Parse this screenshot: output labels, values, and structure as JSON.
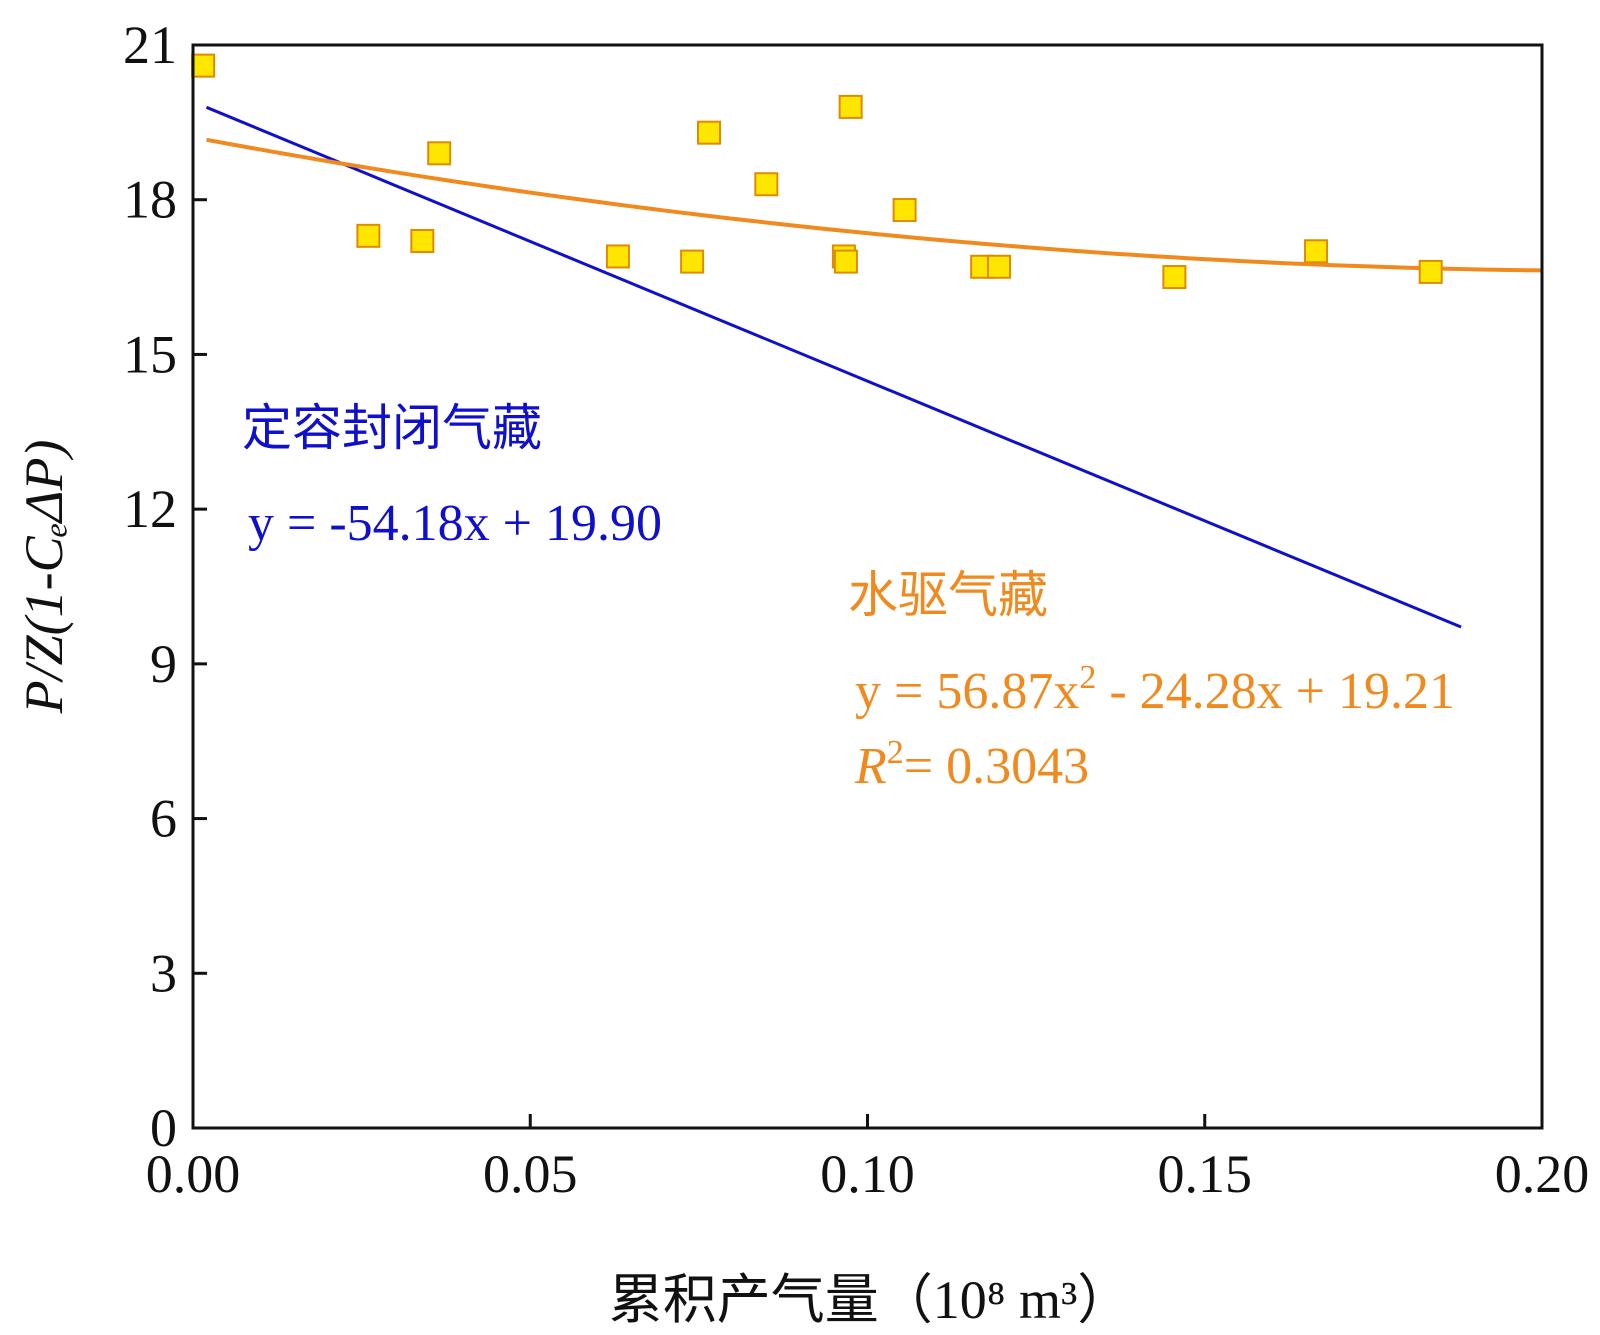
{
  "chart_data": {
    "type": "scatter",
    "title": "",
    "xlabel": "累积产气量（10⁸ m³）",
    "ylabel": "P/Z(1-CₑΔP)",
    "xlim": [
      0,
      0.2
    ],
    "ylim": [
      0,
      21
    ],
    "xticks": [
      0.0,
      0.05,
      0.1,
      0.15,
      0.2
    ],
    "xtick_labels": [
      "0.00",
      "0.05",
      "0.10",
      "0.15",
      "0.20"
    ],
    "yticks": [
      0,
      3,
      6,
      9,
      12,
      15,
      18,
      21
    ],
    "ytick_labels": [
      "0",
      "3",
      "6",
      "9",
      "12",
      "15",
      "18",
      "21"
    ],
    "grid": false,
    "series": [
      {
        "name": "data",
        "kind": "scatter",
        "marker": "square",
        "color": "#FFE600",
        "edge_color": "#E08A00",
        "points": [
          [
            0.0015,
            20.6
          ],
          [
            0.026,
            17.3
          ],
          [
            0.034,
            17.2
          ],
          [
            0.0365,
            18.9
          ],
          [
            0.063,
            16.9
          ],
          [
            0.074,
            16.8
          ],
          [
            0.0765,
            19.3
          ],
          [
            0.085,
            18.3
          ],
          [
            0.0965,
            16.9
          ],
          [
            0.0968,
            16.8
          ],
          [
            0.0975,
            19.8
          ],
          [
            0.1055,
            17.8
          ],
          [
            0.117,
            16.7
          ],
          [
            0.1195,
            16.7
          ],
          [
            0.1455,
            16.5
          ],
          [
            0.1665,
            17.0
          ],
          [
            0.1835,
            16.6
          ]
        ]
      },
      {
        "name": "定容封闭气藏",
        "kind": "linear-fit",
        "color": "#1010CC",
        "coefficients": {
          "a": -54.18,
          "b": 19.9
        },
        "x_range": [
          0.002,
          0.188
        ]
      },
      {
        "name": "水驱气藏",
        "kind": "quadratic-fit",
        "color": "#F08A1E",
        "coefficients": {
          "a": 56.87,
          "b": -24.28,
          "c": 19.21
        },
        "x_range": [
          0.002,
          0.2
        ]
      }
    ],
    "annotations": {
      "closed_label": "定容封闭气藏",
      "closed_equation": "y = -54.18x + 19.90",
      "water_label": "水驱气藏",
      "water_eq_part1": "y = 56.87x",
      "water_eq_sup": "2",
      "water_eq_part2": " - 24.28x + 19.21",
      "r2_symbol": "R",
      "r2_sup": "2",
      "r2_value": "= 0.3043"
    }
  }
}
